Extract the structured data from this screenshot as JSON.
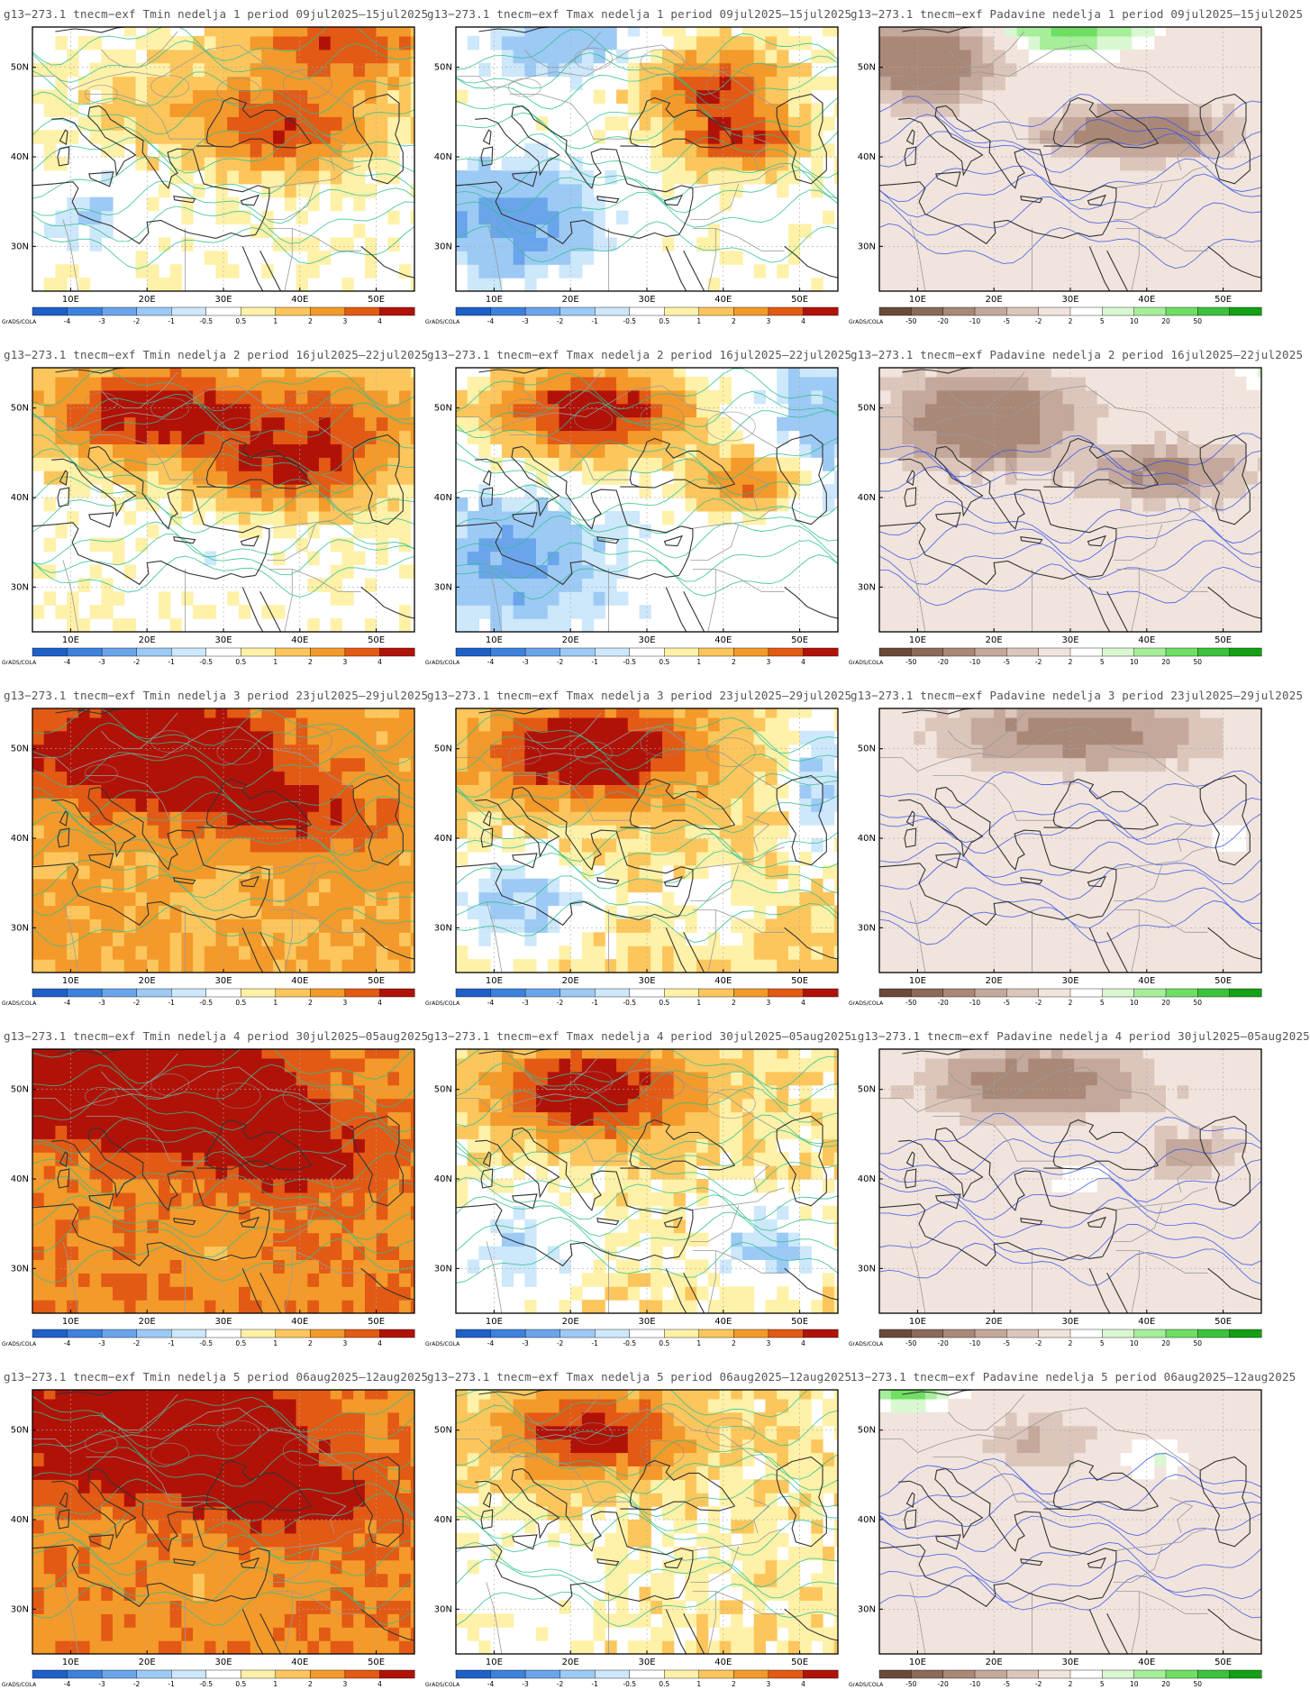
{
  "credit": "GrADS/COLA",
  "lat_labels": [
    "50N",
    "40N",
    "30N"
  ],
  "lon_labels": [
    "10E",
    "20E",
    "30E",
    "40E",
    "50E"
  ],
  "legends": {
    "temp": {
      "labels": [
        "-4",
        "-3",
        "-2",
        "-1",
        "-0.5",
        "0.5",
        "1",
        "2",
        "3",
        "4"
      ],
      "colors": [
        "#1f5fc8",
        "#3c82dc",
        "#6aa5eb",
        "#9ccaf5",
        "#cde7fb",
        "#ffffff",
        "#fff1a8",
        "#fcc65c",
        "#f39a2a",
        "#e35a14",
        "#b11208"
      ]
    },
    "precip": {
      "labels": [
        "-50",
        "-20",
        "-10",
        "-5",
        "-2",
        "2",
        "5",
        "10",
        "20",
        "50"
      ],
      "colors": [
        "#6b4a3a",
        "#8c6a59",
        "#a98878",
        "#c4a89b",
        "#dcc6bb",
        "#f1e4dc",
        "#ffffff",
        "#d9f8d2",
        "#a6ee9a",
        "#6fdf63",
        "#3cc23c",
        "#14a014"
      ]
    }
  },
  "rows": [
    {
      "week": "1",
      "period": "09jul2025–15jul2025",
      "titles": [
        "g13−273.1 tnecm−exf Tmin nedelja 1 period 09jul2025–15jul2025",
        "g13−273.1 tnecm−exf Tmax nedelja 1 period 09jul2025–15jul2025",
        "g13−273.1 tnecm−exf Padavine nedelja 1 period 09jul2025–15jul2025"
      ]
    },
    {
      "week": "2",
      "period": "16jul2025–22jul2025",
      "titles": [
        "g13−273.1 tnecm−exf Tmin nedelja 2 period 16jul2025–22jul2025",
        "g13−273.1 tnecm−exf Tmax nedelja 2 period 16jul2025–22jul2025",
        "g13−273.1 tnecm−exf Padavine nedelja 2 period 16jul2025–22jul2025"
      ]
    },
    {
      "week": "3",
      "period": "23jul2025–29jul2025",
      "titles": [
        "g13−273.1 tnecm−exf Tmin nedelja 3 period 23jul2025–29jul2025",
        "g13−273.1 tnecm−exf Tmax nedelja 3 period 23jul2025–29jul2025",
        "g13−273.1 tnecm−exf Padavine nedelja 3 period 23jul2025–29jul2025"
      ]
    },
    {
      "week": "4",
      "period": "30jul2025–05aug2025",
      "titles": [
        "g13−273.1 tnecm−exf Tmin nedelja 4 period 30jul2025–05aug2025",
        "g13−273.1 tnecm−exf Tmax nedelja 4 period 30jul2025–05aug2025",
        "ıg13−273.1 tnecm−exf Padavine nedelja 4 period 30jul2025–05aug2025"
      ]
    },
    {
      "week": "5",
      "period": "06aug2025–12aug2025",
      "titles": [
        "g13−273.1 tnecm−exf Tmin nedelja 5 period 06aug2025–12aug2025",
        "g13−273.1 tnecm−exf Tmax nedelja 5 period 06aug2025–12aug2025",
        "13−273.1 tnecm−exf Padavine nedelja 5 period 06aug2025–12aug2025"
      ]
    }
  ]
}
